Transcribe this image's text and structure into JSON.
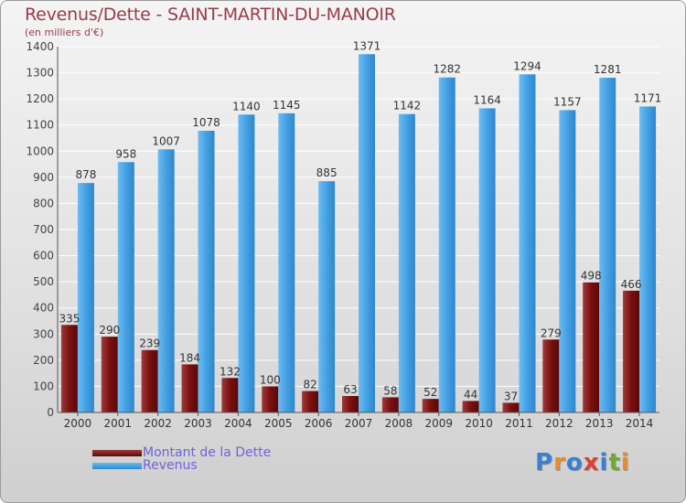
{
  "title": "Revenus/Dette - SAINT-MARTIN-DU-MANOIR",
  "subtitle": "(en milliers d'€)",
  "logo": {
    "text": "Proxiti",
    "letters": [
      "P",
      "r",
      "o",
      "x",
      "i",
      "t",
      "i"
    ],
    "colors": [
      "#3a7fd1",
      "#e8892b",
      "#3a7fd1",
      "#d9403a",
      "#3a7fd1",
      "#6cab2f",
      "#e8892b"
    ]
  },
  "legend": [
    {
      "label": "Montant de la Dette",
      "color": "#7a1010"
    },
    {
      "label": "Revenus",
      "color": "#3f9be0"
    }
  ],
  "colors": {
    "dette": "#7a1010",
    "dette_light": "#a04040",
    "revenus": "#3f9be0",
    "revenus_light": "#5fb3ef",
    "axis": "#555555",
    "label": "#444444"
  },
  "chart_data": {
    "type": "bar",
    "title": "Revenus/Dette - SAINT-MARTIN-DU-MANOIR",
    "ylabel": "(en milliers d'€)",
    "ylim": [
      0,
      1400
    ],
    "yticks": [
      0,
      100,
      200,
      300,
      400,
      500,
      600,
      700,
      800,
      900,
      1000,
      1100,
      1200,
      1300,
      1400
    ],
    "categories": [
      "2000",
      "2001",
      "2002",
      "2003",
      "2004",
      "2005",
      "2006",
      "2007",
      "2008",
      "2009",
      "2010",
      "2011",
      "2012",
      "2013",
      "2014"
    ],
    "series": [
      {
        "name": "Montant de la Dette",
        "values": [
          335,
          290,
          239,
          184,
          132,
          100,
          82,
          63,
          58,
          52,
          44,
          37,
          279,
          498,
          466
        ]
      },
      {
        "name": "Revenus",
        "values": [
          878,
          958,
          1007,
          1078,
          1140,
          1145,
          885,
          1371,
          1142,
          1282,
          1164,
          1294,
          1157,
          1281,
          1171
        ]
      }
    ]
  }
}
